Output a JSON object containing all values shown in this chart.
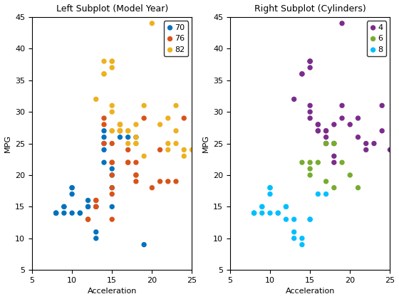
{
  "title_left": "Left Subplot (Model Year)",
  "title_right": "Right Subplot (Cylinders)",
  "xlabel": "Acceleration",
  "ylabel": "MPG",
  "xlim": [
    5,
    25
  ],
  "ylim": [
    5,
    45
  ],
  "xticks": [
    5,
    10,
    15,
    20,
    25
  ],
  "yticks": [
    5,
    10,
    15,
    20,
    25,
    30,
    35,
    40,
    45
  ],
  "left_groups": {
    "70": {
      "color": "#0072BD",
      "accel": [
        8,
        8,
        8,
        9,
        9,
        9,
        10,
        10,
        10,
        10,
        11,
        11,
        12,
        12,
        12,
        13,
        13,
        13,
        14,
        14,
        14,
        14,
        14,
        15,
        15,
        15,
        15,
        16,
        17,
        18,
        19
      ],
      "mpg": [
        14,
        14,
        14,
        15,
        15,
        14,
        18,
        18,
        17,
        14,
        14,
        14,
        15,
        15,
        16,
        11,
        10,
        15,
        27,
        26,
        25,
        24,
        22,
        21,
        20,
        18,
        15,
        26,
        26,
        26,
        9
      ]
    },
    "76": {
      "color": "#D95319",
      "accel": [
        12,
        12,
        13,
        13,
        13,
        13,
        14,
        14,
        14,
        15,
        15,
        15,
        15,
        15,
        15,
        15,
        16,
        16,
        16,
        17,
        17,
        17,
        18,
        18,
        18,
        18,
        19,
        20,
        21,
        21,
        22,
        23,
        24
      ],
      "mpg": [
        13,
        13,
        16,
        16,
        15,
        15,
        29,
        28,
        25,
        25,
        22,
        22,
        20,
        18,
        17,
        13,
        27,
        28,
        27,
        24,
        22,
        22,
        20,
        20,
        22,
        19,
        29,
        18,
        24,
        19,
        19,
        19,
        29
      ]
    },
    "82": {
      "color": "#EDB120",
      "accel": [
        13,
        14,
        14,
        14,
        15,
        15,
        15,
        15,
        15,
        15,
        15,
        16,
        16,
        16,
        16,
        17,
        17,
        17,
        18,
        18,
        18,
        18,
        19,
        19,
        20,
        21,
        22,
        22,
        22,
        23,
        23,
        23,
        24,
        24,
        25
      ],
      "mpg": [
        32,
        36,
        36,
        38,
        38,
        38,
        37,
        31,
        30,
        27,
        27,
        28,
        28,
        27,
        27,
        27,
        27,
        25,
        26,
        25,
        25,
        28,
        23,
        31,
        44,
        28,
        29,
        25,
        24,
        25,
        27,
        31,
        24,
        23,
        24
      ]
    }
  },
  "right_groups": {
    "4": {
      "color": "#7B2D8B",
      "accel": [
        13,
        14,
        14,
        15,
        15,
        15,
        15,
        15,
        15,
        15,
        16,
        16,
        16,
        16,
        17,
        17,
        17,
        17,
        17,
        18,
        18,
        18,
        18,
        19,
        19,
        19,
        20,
        21,
        21,
        22,
        22,
        23,
        24,
        24,
        25
      ],
      "mpg": [
        32,
        36,
        36,
        38,
        38,
        38,
        37,
        31,
        30,
        29,
        28,
        28,
        27,
        27,
        27,
        27,
        25,
        26,
        25,
        25,
        28,
        23,
        22,
        31,
        44,
        29,
        28,
        29,
        26,
        25,
        24,
        25,
        27,
        31,
        24
      ]
    },
    "6": {
      "color": "#77AC30",
      "accel": [
        14,
        15,
        15,
        15,
        16,
        17,
        17,
        18,
        18,
        18,
        19,
        20,
        21
      ],
      "mpg": [
        22,
        22,
        21,
        20,
        22,
        19,
        25,
        25,
        25,
        18,
        22,
        20,
        18
      ]
    },
    "8": {
      "color": "#00BFFF",
      "accel": [
        8,
        8,
        8,
        9,
        9,
        9,
        10,
        10,
        10,
        10,
        11,
        11,
        12,
        12,
        12,
        13,
        13,
        13,
        14,
        14,
        15,
        15,
        16,
        17
      ],
      "mpg": [
        14,
        14,
        14,
        15,
        15,
        14,
        18,
        18,
        17,
        14,
        14,
        14,
        15,
        15,
        13,
        11,
        10,
        13,
        10,
        9,
        13,
        13,
        17,
        17
      ]
    }
  },
  "marker_size": 28,
  "title_fontsize": 9,
  "axis_fontsize": 8,
  "tick_fontsize": 8,
  "legend_fontsize": 8
}
